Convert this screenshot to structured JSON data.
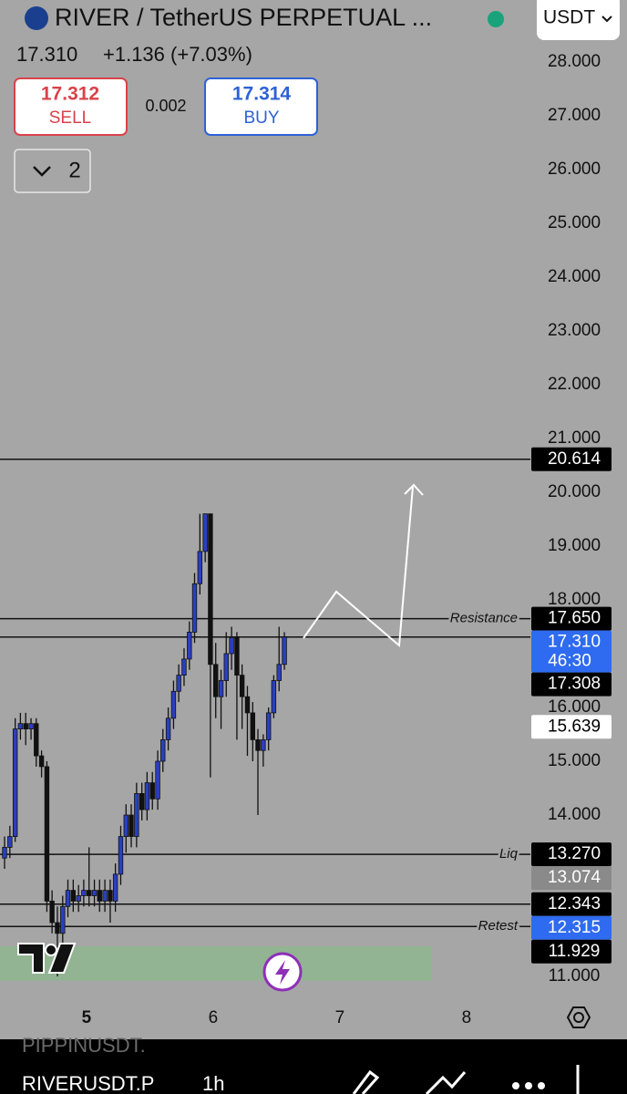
{
  "header": {
    "title": "RIVER / TetherUS PERPETUAL ...",
    "quote": "USDT",
    "last": "17.310",
    "change": "+1.136 (+7.03%)",
    "sell_price": "17.312",
    "sell_label": "SELL",
    "spread": "0.002",
    "buy_price": "17.314",
    "buy_label": "BUY",
    "indicator_count": "2"
  },
  "chart_data": {
    "type": "candlestick",
    "x": [
      4.353,
      4.395,
      4.437,
      4.478,
      4.52,
      4.562,
      4.603,
      4.645,
      4.687,
      4.728,
      4.77,
      4.812,
      4.853,
      4.895,
      4.937,
      4.978,
      5.02,
      5.062,
      5.103,
      5.145,
      5.187,
      5.228,
      5.27,
      5.312,
      5.353,
      5.395,
      5.437,
      5.478,
      5.52,
      5.562,
      5.603,
      5.645,
      5.687,
      5.728,
      5.77,
      5.812,
      5.853,
      5.895,
      5.937,
      5.978,
      6.02,
      6.062,
      6.103,
      6.145,
      6.187,
      6.228,
      6.27,
      6.312,
      6.353,
      6.395,
      6.437,
      6.478,
      6.52,
      6.562
    ],
    "open": [
      13.2,
      13.4,
      13.6,
      15.6,
      15.7,
      15.6,
      15.7,
      15.1,
      14.9,
      12.4,
      12.0,
      11.8,
      12.3,
      12.6,
      12.4,
      12.5,
      12.6,
      12.5,
      12.6,
      12.4,
      12.6,
      12.4,
      12.9,
      13.6,
      14.0,
      13.6,
      14.4,
      14.1,
      14.6,
      14.3,
      15.0,
      15.4,
      15.8,
      16.3,
      16.6,
      16.9,
      17.4,
      18.3,
      18.9,
      19.6,
      16.8,
      16.2,
      16.5,
      17.0,
      17.3,
      16.6,
      16.2,
      15.9,
      15.4,
      15.2,
      15.4,
      15.9,
      16.5,
      16.8
    ],
    "high": [
      13.6,
      13.8,
      15.8,
      15.9,
      15.9,
      15.8,
      15.8,
      15.2,
      15.0,
      12.6,
      12.3,
      12.5,
      12.8,
      12.8,
      12.7,
      12.8,
      13.4,
      12.8,
      12.8,
      12.8,
      12.8,
      13.1,
      13.8,
      14.2,
      14.2,
      14.6,
      14.6,
      14.8,
      14.8,
      15.2,
      15.6,
      16.0,
      16.5,
      16.8,
      17.1,
      17.6,
      18.5,
      19.6,
      19.6,
      19.6,
      17.2,
      16.7,
      17.4,
      17.5,
      17.4,
      16.8,
      16.4,
      16.1,
      15.6,
      15.5,
      16.0,
      16.6,
      17.5,
      17.4
    ],
    "low": [
      13.0,
      13.2,
      13.5,
      15.4,
      15.3,
      15.4,
      14.9,
      14.7,
      12.2,
      11.8,
      11.0,
      11.6,
      12.1,
      12.2,
      12.2,
      12.3,
      12.3,
      12.3,
      12.2,
      12.2,
      12.0,
      12.2,
      12.7,
      13.3,
      13.4,
      13.4,
      13.9,
      13.9,
      14.1,
      14.1,
      14.8,
      15.2,
      15.6,
      16.1,
      16.4,
      16.7,
      17.2,
      18.1,
      18.7,
      14.7,
      15.8,
      15.6,
      16.2,
      16.7,
      15.4,
      15.6,
      15.1,
      15.0,
      14.0,
      14.9,
      15.2,
      15.8,
      16.3,
      16.7
    ],
    "close": [
      13.4,
      13.6,
      15.6,
      15.7,
      15.6,
      15.7,
      15.1,
      14.9,
      12.4,
      12.0,
      11.8,
      12.3,
      12.6,
      12.4,
      12.5,
      12.6,
      12.5,
      12.6,
      12.4,
      12.6,
      12.4,
      12.9,
      13.6,
      14.0,
      13.6,
      14.4,
      14.1,
      14.6,
      14.3,
      15.0,
      15.4,
      15.8,
      16.3,
      16.6,
      16.9,
      17.4,
      18.3,
      18.9,
      19.6,
      16.8,
      16.2,
      16.5,
      17.0,
      17.3,
      16.6,
      16.2,
      15.9,
      15.4,
      15.2,
      15.4,
      15.9,
      16.5,
      16.8,
      17.31
    ],
    "up_color": "#2a3fc0",
    "down_color": "#111111",
    "xlim": [
      4.317,
      8.504
    ],
    "xticks": [
      5,
      6,
      7,
      8
    ],
    "ylim": [
      11,
      28
    ],
    "yticks": [
      {
        "value": 28,
        "label": "28.000"
      },
      {
        "value": 27,
        "label": "27.000"
      },
      {
        "value": 26,
        "label": "26.000"
      },
      {
        "value": 25,
        "label": "25.000"
      },
      {
        "value": 24,
        "label": "24.000"
      },
      {
        "value": 23,
        "label": "23.000"
      },
      {
        "value": 22,
        "label": "22.000"
      },
      {
        "value": 21,
        "label": "21.000"
      },
      {
        "value": 20,
        "label": "20.000"
      },
      {
        "value": 19,
        "label": "19.000"
      },
      {
        "value": 18,
        "label": "18.000"
      },
      {
        "value": 16,
        "label": "16.000"
      },
      {
        "value": 15,
        "label": "15.000"
      },
      {
        "value": 14,
        "label": "14.000"
      },
      {
        "value": 11,
        "label": "11.000"
      }
    ],
    "levels": [
      {
        "value": 20.614
      },
      {
        "value": 17.65,
        "label": "Resistance"
      },
      {
        "value": 17.31
      },
      {
        "value": 13.27,
        "label": "Liq"
      },
      {
        "value": 12.343
      },
      {
        "value": 11.929,
        "label": "Retest"
      }
    ],
    "zones": [
      {
        "from": 10.92,
        "to": 11.56,
        "color": "#8db88d"
      }
    ],
    "price_tags": [
      {
        "value": 20.614,
        "label": "20.614",
        "bg": "#000000",
        "fg": "#ffffff"
      },
      {
        "value": 17.65,
        "label": "17.650",
        "bg": "#000000",
        "fg": "#ffffff"
      },
      {
        "value": 17.31,
        "label": "17.310",
        "countdown": "46:30",
        "bg": "#2f6bf0",
        "fg": "#ffffff"
      },
      {
        "value": 17.308,
        "label": "17.308",
        "bg": "#000000",
        "fg": "#ffffff"
      },
      {
        "value": 15.639,
        "label": "15.639",
        "bg": "#ffffff",
        "fg": "#000000"
      },
      {
        "value": 13.27,
        "label": "13.270",
        "bg": "#000000",
        "fg": "#ffffff"
      },
      {
        "value": 13.074,
        "label": "13.074",
        "bg": "#8a8a8a",
        "fg": "#ffffff"
      },
      {
        "value": 12.343,
        "label": "12.343",
        "bg": "#000000",
        "fg": "#ffffff"
      },
      {
        "value": 12.315,
        "label": "12.315",
        "bg": "#2f6bf0",
        "fg": "#ffffff"
      },
      {
        "value": 11.929,
        "label": "11.929",
        "bg": "#000000",
        "fg": "#ffffff"
      }
    ]
  },
  "bottom_bar": {
    "prev_symbol": "PIPPINUSDT.",
    "symbol": "RIVERUSDT.P",
    "interval": "1h"
  }
}
